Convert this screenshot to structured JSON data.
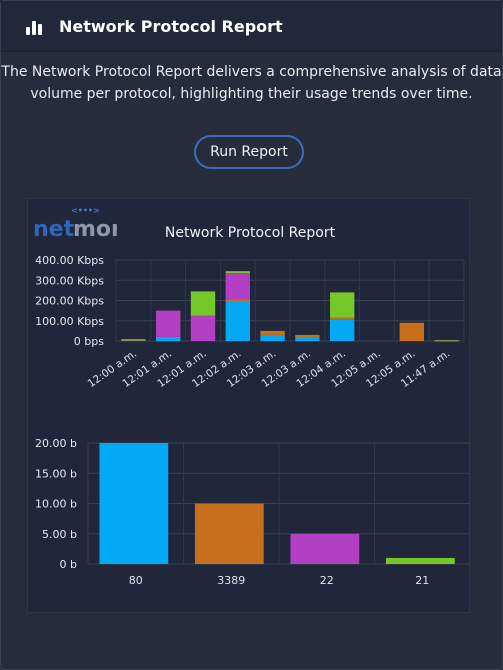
{
  "header": {
    "title": "Network Protocol Report",
    "icon": "bar-chart-icon"
  },
  "description": "The Network Protocol Report delivers a comprehensive analysis of data volume per protocol, highlighting their usage trends over time.",
  "run_button": {
    "label": "Run Report"
  },
  "logo": {
    "text_part1": "net",
    "text_part2": "mon",
    "signal_marks": "<•••>"
  },
  "chart_title": "Network Protocol Report",
  "colors": {
    "blue": "#03a9f4",
    "orange": "#c76f1a",
    "purple": "#b23fc4",
    "green": "#76c728",
    "olive": "#8a8a5c"
  },
  "chart_data": [
    {
      "type": "bar",
      "stacked": true,
      "title": "Network Protocol Report",
      "categories": [
        "12:00 a.m.",
        "12:01 a.m.",
        "12:01 a.m.",
        "12:02 a.m.",
        "12:03 a.m.",
        "12:03 a.m.",
        "12:04 a.m.",
        "12:05 a.m.",
        "12:05 a.m.",
        "11:47 a.m."
      ],
      "yticks": [
        "0 bps",
        "100.00 Kbps",
        "200.00 Kbps",
        "300.00 Kbps",
        "400.00 Kbps"
      ],
      "ylim": [
        0,
        400
      ],
      "grid": true,
      "series": [
        {
          "color": "#03a9f4",
          "values": [
            0,
            20,
            0,
            200,
            30,
            15,
            105,
            0,
            0,
            0
          ]
        },
        {
          "color": "#c76f1a",
          "values": [
            0,
            0,
            0,
            5,
            20,
            15,
            10,
            0,
            90,
            0
          ]
        },
        {
          "color": "#b23fc4",
          "values": [
            0,
            130,
            125,
            130,
            0,
            0,
            0,
            0,
            0,
            0
          ]
        },
        {
          "color": "#76c728",
          "values": [
            0,
            0,
            120,
            10,
            0,
            0,
            125,
            0,
            0,
            0
          ]
        },
        {
          "color": "#8a8a5c",
          "values": [
            10,
            0,
            0,
            0,
            0,
            0,
            0,
            0,
            0,
            5
          ]
        }
      ]
    },
    {
      "type": "bar",
      "categories": [
        "80",
        "3389",
        "22",
        "21"
      ],
      "values": [
        20,
        10,
        5,
        1
      ],
      "colors": [
        "#03a9f4",
        "#c76f1a",
        "#b23fc4",
        "#76c728"
      ],
      "yticks": [
        "0 b",
        "5.00 b",
        "10.00 b",
        "15.00 b",
        "20.00 b"
      ],
      "ylim": [
        0,
        20
      ],
      "grid": true
    }
  ]
}
